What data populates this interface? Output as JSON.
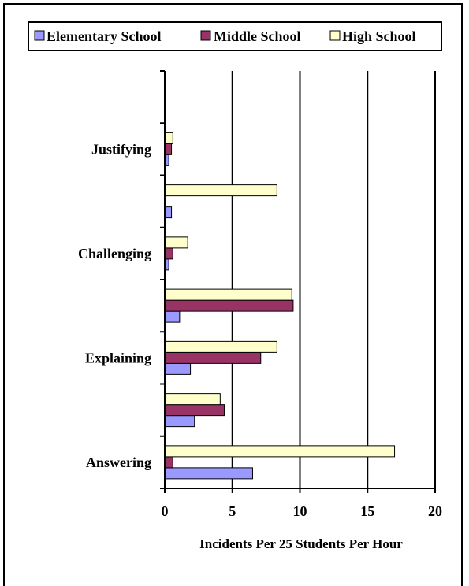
{
  "chart_data": {
    "type": "bar",
    "orientation": "horizontal",
    "xlabel": "Incidents Per 25 Students Per Hour",
    "ylabel": "",
    "xlim": [
      0,
      20
    ],
    "xticks": [
      0,
      5,
      10,
      15,
      20
    ],
    "grid": true,
    "legend_position": "top",
    "categories": [
      "Answering",
      "",
      "Explaining",
      "",
      "Challenging",
      "",
      "Justifying",
      ""
    ],
    "series": [
      {
        "name": "Elementary School",
        "color": "#9999ff",
        "values": [
          6.5,
          2.2,
          1.9,
          1.1,
          0.3,
          0.5,
          0.3,
          0
        ]
      },
      {
        "name": "Middle School",
        "color": "#993366",
        "values": [
          0.6,
          4.4,
          7.1,
          9.5,
          0.6,
          0,
          0.5,
          0
        ]
      },
      {
        "name": "High School",
        "color": "#ffffcc",
        "values": [
          17.0,
          4.1,
          8.3,
          9.4,
          1.7,
          8.3,
          0.6,
          0
        ]
      }
    ]
  }
}
